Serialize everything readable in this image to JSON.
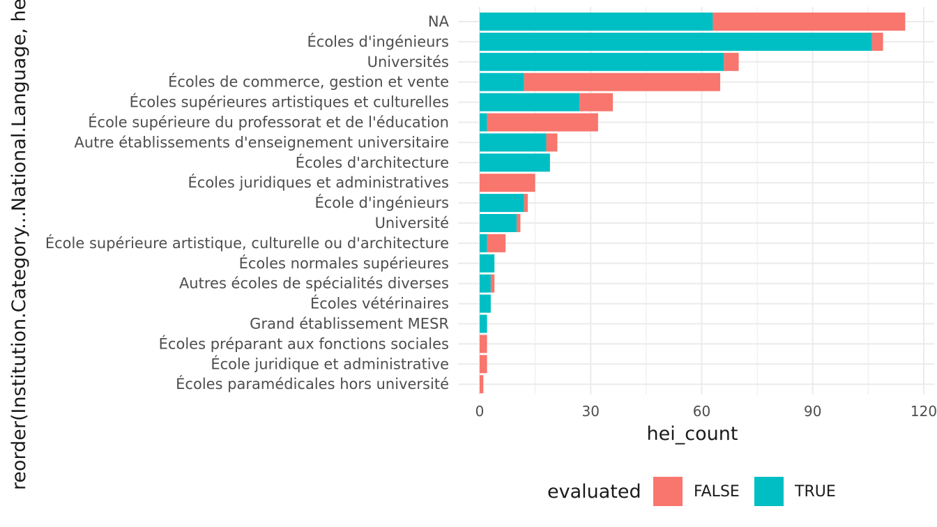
{
  "chart_data": {
    "type": "bar",
    "orientation": "horizontal",
    "stacked": true,
    "xlabel": "hei_count",
    "ylabel": "reorder(Institution.Category...National.Language, hei_",
    "xlim": [
      0,
      120
    ],
    "xticks": [
      0,
      30,
      60,
      90,
      120
    ],
    "grid": true,
    "legend": {
      "title": "evaluated",
      "position": "bottom"
    },
    "categories": [
      "NA",
      "Écoles d'ingénieurs",
      "Universités",
      "Écoles de commerce, gestion et vente",
      "Écoles supérieures artistiques et culturelles",
      "École supérieure du professorat et de l'éducation",
      "Autre établissements d'enseignement universitaire",
      "Écoles d'architecture",
      "Écoles juridiques et administratives",
      "École d'ingénieurs",
      "Université",
      "École supérieure artistique, culturelle ou d'architecture",
      "Écoles normales supérieures",
      "Autres écoles de spécialités diverses",
      "Écoles vétérinaires",
      "Grand établissement MESR",
      "Écoles préparant aux fonctions sociales",
      "École juridique et administrative",
      "Écoles paramédicales hors université"
    ],
    "series": [
      {
        "name": "TRUE",
        "color": "#00BFC4",
        "values": [
          63,
          106,
          66,
          12,
          27,
          2,
          18,
          19,
          0,
          12,
          10,
          2,
          4,
          3,
          3,
          2,
          0,
          0,
          0
        ]
      },
      {
        "name": "FALSE",
        "color": "#F8766D",
        "values": [
          52,
          3,
          4,
          53,
          9,
          30,
          3,
          0,
          15,
          1,
          1,
          5,
          0,
          1,
          0,
          0,
          2,
          2,
          1
        ]
      }
    ]
  }
}
